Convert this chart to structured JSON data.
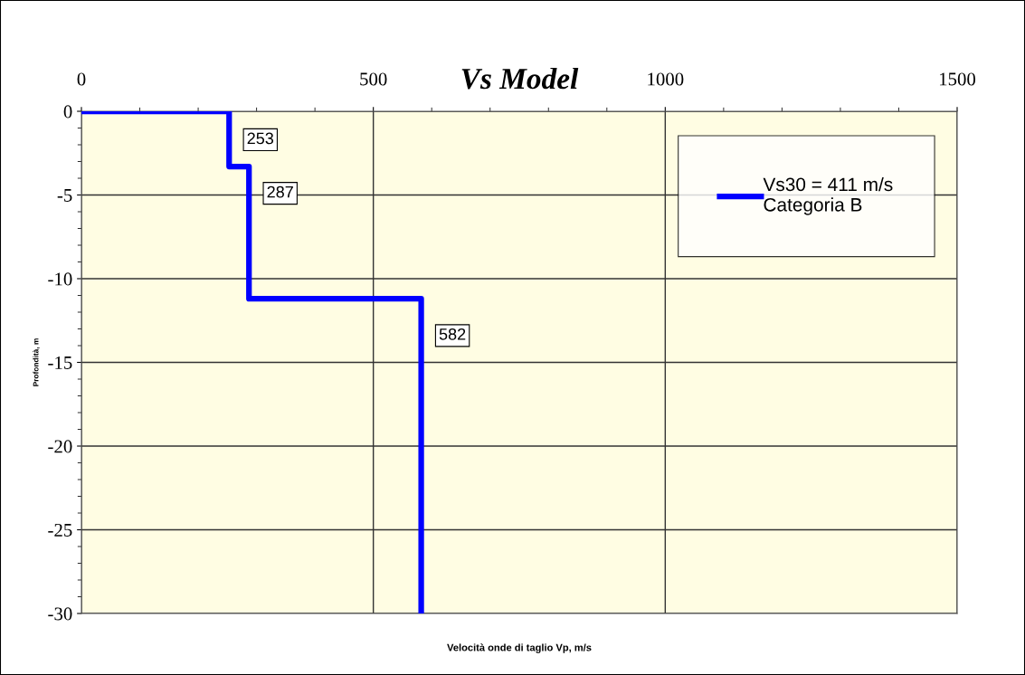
{
  "chart_data": {
    "type": "line",
    "title": "Vs Model",
    "xlabel": "Velocità onde di taglio Vp, m/s",
    "ylabel": "Profondità, m",
    "series": [
      {
        "name": "Vs30 = 411 m/s\nCategoria B",
        "color": "#0000ff",
        "x": [
          0,
          253,
          253,
          287,
          287,
          582,
          582
        ],
        "values": [
          0,
          0,
          -3.3,
          -3.3,
          -11.2,
          -11.2,
          -30
        ]
      }
    ],
    "annotations": [
      {
        "text": "253",
        "x": 253,
        "y": -1.7
      },
      {
        "text": "287",
        "x": 287,
        "y": -4.9
      },
      {
        "text": "582",
        "x": 582,
        "y": -13.4
      }
    ],
    "xlim": [
      0,
      1500
    ],
    "xticks": [
      0,
      500,
      1000,
      1500
    ],
    "ylim": [
      -30,
      0
    ],
    "yticks": [
      0,
      -5,
      -10,
      -15,
      -20,
      -25,
      -30
    ],
    "grid": true,
    "legend": "top right",
    "line_style": "solid",
    "marker": "none"
  }
}
